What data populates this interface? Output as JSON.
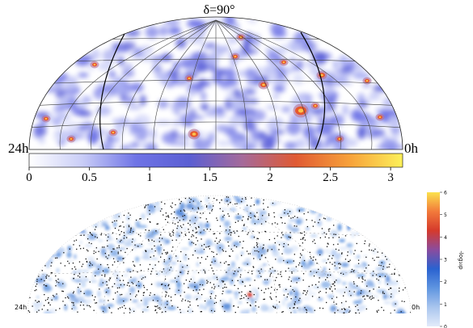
{
  "top_map": {
    "pole_label": "δ=90°",
    "ra_left_label": "24h",
    "ra_right_label": "0h",
    "colorbar": {
      "ticks": [
        "0",
        "0.5",
        "1",
        "1.5",
        "2",
        "2.5",
        "3"
      ],
      "range": [
        0,
        3.1
      ],
      "stops": [
        "#ffffff",
        "#c9cdf7",
        "#6f74e6",
        "#5b5fd3",
        "#a56a9a",
        "#e05a33",
        "#f7a13a",
        "#fdf15a"
      ]
    }
  },
  "bottom_map": {
    "ra_left_label": "24h",
    "ra_right_label": "0h",
    "colorbar": {
      "axis_label": "-log₁₀p",
      "ticks": [
        "0",
        "1",
        "2",
        "3",
        "4",
        "5",
        "6"
      ],
      "range": [
        0,
        6
      ],
      "stops": [
        "#e3ebfa",
        "#a9c5ee",
        "#5f95e0",
        "#2a62d0",
        "#8a4c9e",
        "#d53a2c",
        "#f27a3b",
        "#fbe24c"
      ]
    }
  }
}
